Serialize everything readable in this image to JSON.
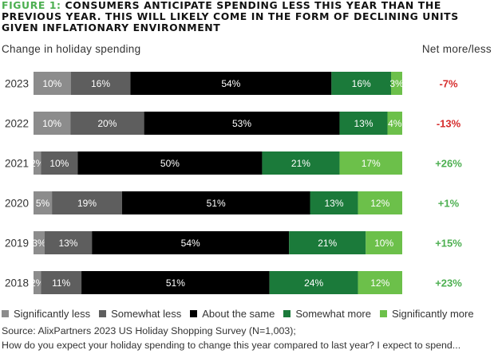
{
  "header": {
    "figure_label": "FIGURE 1:",
    "title": "CONSUMERS ANTICIPATE SPENDING LESS THIS YEAR THAN THE PREVIOUS YEAR. THIS WILL LIKELY COME IN THE FORM OF DECLINING UNITS GIVEN INFLATIONARY ENVIRONMENT",
    "left_label": "Change in holiday spending",
    "right_label": "Net more/less"
  },
  "colors": {
    "Significantly less": "#8c8c8c",
    "Somewhat less": "#5e5e5e",
    "About the same": "#000000",
    "Somewhat more": "#1b7a3a",
    "Significantly more": "#6cc04a",
    "net_negative": "#d62c2c",
    "net_positive": "#4caf50",
    "figure_accent": "#4caf50"
  },
  "chart_data": {
    "type": "bar",
    "orientation": "horizontal",
    "stacked": true,
    "categories": [
      "2023",
      "2022",
      "2021",
      "2020",
      "2019",
      "2018"
    ],
    "series": [
      {
        "name": "Significantly less",
        "values": [
          10,
          10,
          2,
          5,
          3,
          2
        ],
        "labels": [
          "10%",
          "10%",
          "2%",
          "5%",
          "3%",
          "2%"
        ]
      },
      {
        "name": "Somewhat less",
        "values": [
          16,
          20,
          10,
          19,
          13,
          11
        ],
        "labels": [
          "16%",
          "20%",
          "10%",
          "19%",
          "13%",
          "11%"
        ]
      },
      {
        "name": "About the same",
        "values": [
          54,
          53,
          50,
          51,
          54,
          51
        ],
        "labels": [
          "54%",
          "53%",
          "50%",
          "51%",
          "54%",
          "51%"
        ]
      },
      {
        "name": "Somewhat more",
        "values": [
          16,
          13,
          21,
          13,
          21,
          24
        ],
        "labels": [
          "16%",
          "13%",
          "21%",
          "13%",
          "21%",
          "24%"
        ]
      },
      {
        "name": "Significantly more",
        "values": [
          3,
          4,
          17,
          12,
          10,
          12
        ],
        "labels": [
          "3%",
          "4%",
          "17%",
          "12%",
          "10%",
          "12%"
        ]
      }
    ],
    "net": [
      "-7%",
      "-13%",
      "+26%",
      "+1%",
      "+15%",
      "+23%"
    ],
    "legend_position": "bottom",
    "grid": false
  },
  "source": {
    "line1": "Source: AlixPartners 2023 US Holiday Shopping Survey (N=1,003);",
    "line2": "How do you expect your holiday spending to change this year compared to last year? I expect to spend..."
  }
}
